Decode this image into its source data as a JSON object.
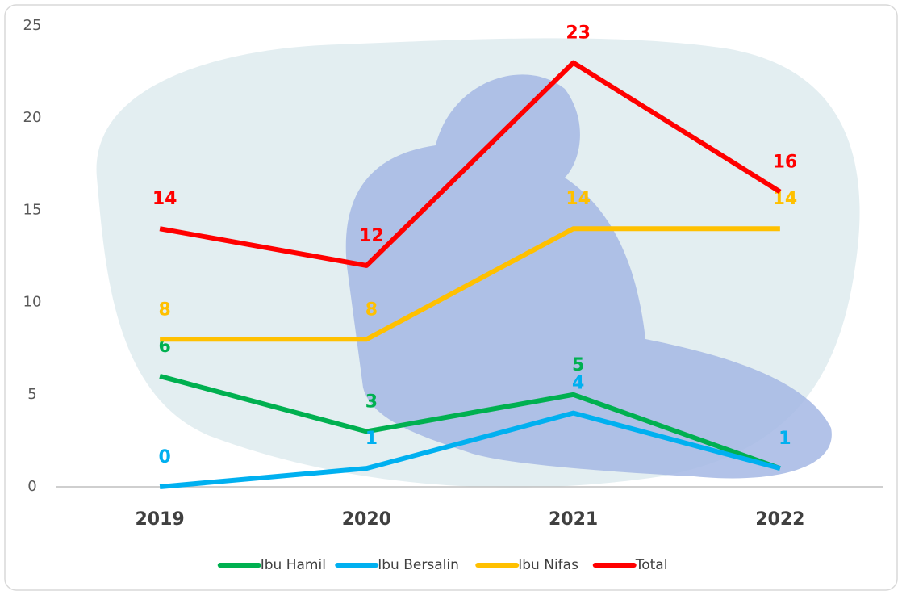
{
  "chart_data": {
    "type": "line",
    "categories": [
      "2019",
      "2020",
      "2021",
      "2022"
    ],
    "series": [
      {
        "name": "Ibu Hamil",
        "color": "#00b050",
        "values": [
          6,
          3,
          5,
          1
        ]
      },
      {
        "name": "Ibu Bersalin",
        "color": "#00b0f0",
        "values": [
          0,
          1,
          4,
          1
        ]
      },
      {
        "name": "Ibu Nifas",
        "color": "#ffc000",
        "values": [
          8,
          8,
          14,
          14
        ]
      },
      {
        "name": "Total",
        "color": "#ff0000",
        "values": [
          14,
          12,
          23,
          16
        ]
      }
    ],
    "ylim": [
      0,
      25
    ],
    "yticks": [
      0,
      5,
      10,
      15,
      20,
      25
    ],
    "grid": false,
    "legend": "bottom"
  }
}
